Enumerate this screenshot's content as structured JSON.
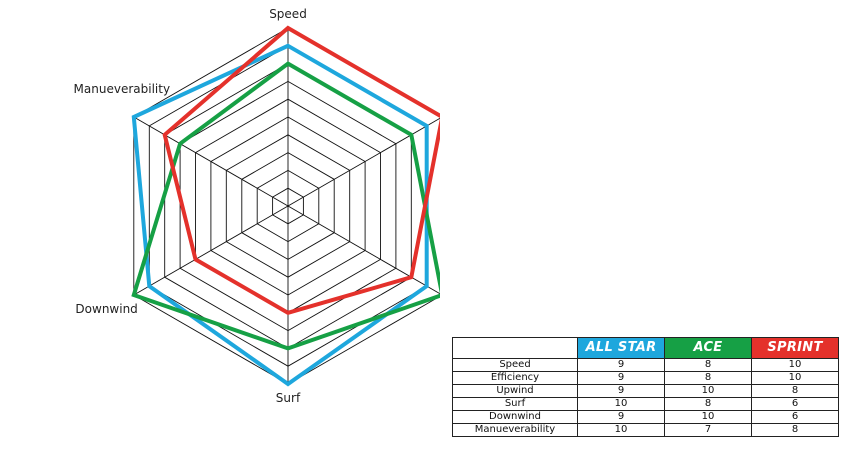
{
  "chart_data": {
    "type": "radar",
    "categories": [
      "Speed",
      "Efficiency",
      "Upwind",
      "Surf",
      "Downwind",
      "Manueverability"
    ],
    "scale": [
      0,
      10
    ],
    "ticks": 10,
    "series": [
      {
        "name": "ALL STAR",
        "color": "#1ea7dd",
        "values": [
          9,
          9,
          9,
          10,
          9,
          10
        ]
      },
      {
        "name": "ACE",
        "color": "#16a045",
        "values": [
          8,
          8,
          10,
          8,
          10,
          7
        ]
      },
      {
        "name": "SPRINT",
        "color": "#e4312b",
        "values": [
          10,
          10,
          8,
          6,
          6,
          8
        ]
      }
    ],
    "grid": true
  },
  "table": {
    "columns": [
      "ALL STAR",
      "ACE",
      "SPRINT"
    ],
    "rows": [
      {
        "label": "Speed",
        "values": [
          "9",
          "8",
          "10"
        ]
      },
      {
        "label": "Efficiency",
        "values": [
          "9",
          "8",
          "10"
        ]
      },
      {
        "label": "Upwind",
        "values": [
          "9",
          "10",
          "8"
        ]
      },
      {
        "label": "Surf",
        "values": [
          "10",
          "8",
          "6"
        ]
      },
      {
        "label": "Downwind",
        "values": [
          "9",
          "10",
          "6"
        ]
      },
      {
        "label": "Manueverability",
        "values": [
          "10",
          "7",
          "8"
        ]
      }
    ]
  }
}
